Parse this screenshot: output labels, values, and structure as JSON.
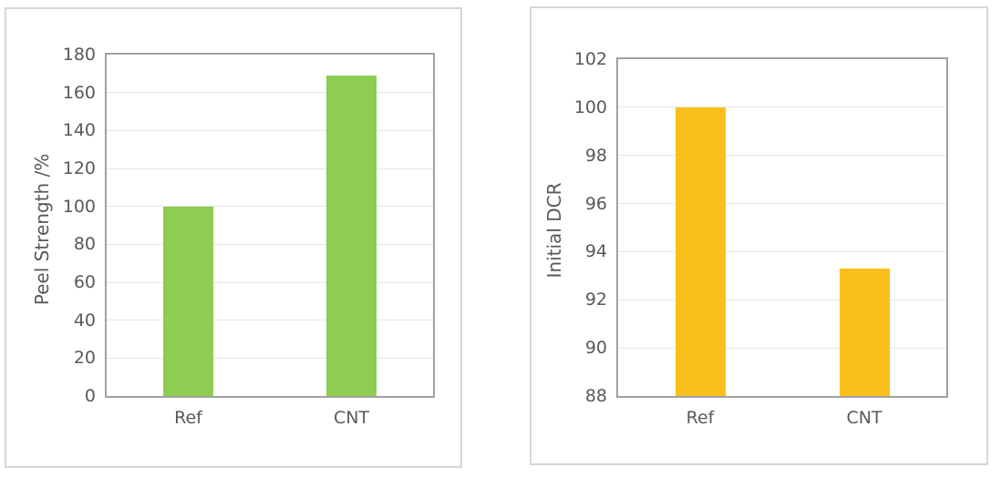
{
  "style": {
    "panel_border_color": "#d6d6d6",
    "plot_border_color": "#a1a1a1",
    "gridline_color": "#e6e6e6",
    "text_color": "#595959",
    "background": "#ffffff"
  },
  "chart_data": [
    {
      "type": "bar",
      "title": "",
      "xlabel": "",
      "ylabel": "Peel Strength /%",
      "categories": [
        "Ref",
        "CNT"
      ],
      "values": [
        100,
        169
      ],
      "ylim": [
        0,
        180
      ],
      "yticks": [
        0,
        20,
        40,
        60,
        80,
        100,
        120,
        140,
        160,
        180
      ],
      "grid": true,
      "legend_position": "none",
      "bar_color": "#8ccd52"
    },
    {
      "type": "bar",
      "title": "",
      "xlabel": "",
      "ylabel": "Initial DCR",
      "categories": [
        "Ref",
        "CNT"
      ],
      "values": [
        100,
        93.3
      ],
      "ylim": [
        88,
        102
      ],
      "yticks": [
        88,
        90,
        92,
        94,
        96,
        98,
        100,
        102
      ],
      "grid": true,
      "legend_position": "none",
      "bar_color": "#fbbf1c"
    }
  ]
}
